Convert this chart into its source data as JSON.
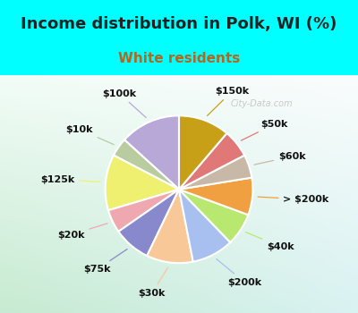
{
  "title": "Income distribution in Polk, WI (%)",
  "subtitle": "White residents",
  "title_color": "#222222",
  "subtitle_color": "#b06820",
  "title_fontsize": 13,
  "subtitle_fontsize": 11,
  "bg_top_color": "#00FFFF",
  "chart_bg_color": "#e0f0e8",
  "labels": [
    "$100k",
    "$10k",
    "$125k",
    "$20k",
    "$75k",
    "$30k",
    "$200k",
    "$40k",
    "> $200k",
    "$60k",
    "$50k",
    "$150k"
  ],
  "values": [
    13,
    4,
    12,
    5,
    8,
    10,
    9,
    7,
    8,
    5,
    6,
    11
  ],
  "colors": [
    "#b8a8d8",
    "#b8cca0",
    "#f0f070",
    "#f0a8b0",
    "#8888cc",
    "#f8c898",
    "#a8c0f0",
    "#b8e870",
    "#f0a040",
    "#c8b8a8",
    "#e07878",
    "#c8a018"
  ],
  "start_angle": 90,
  "label_fontsize": 8,
  "wedge_linewidth": 1.5,
  "wedge_edgecolor": "white"
}
